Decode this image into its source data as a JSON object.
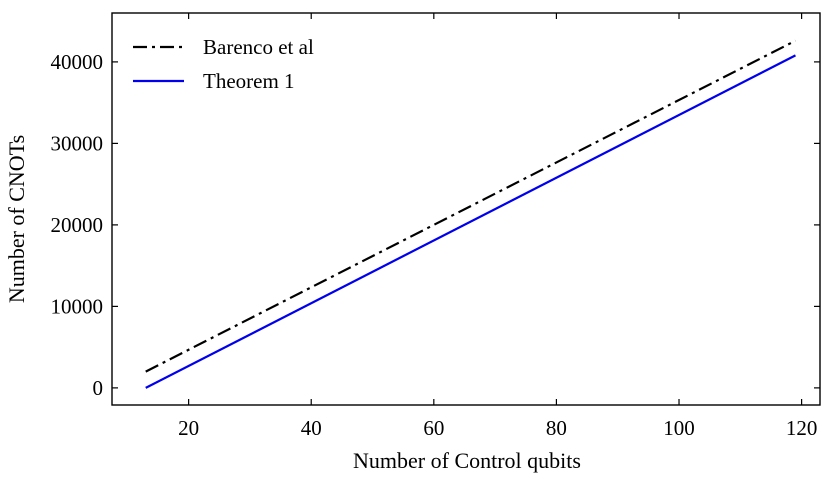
{
  "chart_data": {
    "type": "line",
    "title": "",
    "xlabel": "Number of Control qubits",
    "ylabel": "Number of CNOTs",
    "xlim": [
      7.5,
      123
    ],
    "ylim": [
      -2100,
      46000
    ],
    "xticks": [
      20,
      40,
      60,
      80,
      100,
      120
    ],
    "yticks": [
      0,
      10000,
      20000,
      30000,
      40000
    ],
    "xtick_labels": [
      "20",
      "40",
      "60",
      "80",
      "100",
      "120"
    ],
    "ytick_labels": [
      "0",
      "10000",
      "20000",
      "30000",
      "40000"
    ],
    "grid": false,
    "legend_position": "top-left",
    "series": [
      {
        "name": "Barenco et al",
        "color": "#000000",
        "style": "dashdot",
        "x": [
          13,
          119
        ],
        "y": [
          2000,
          42600
        ]
      },
      {
        "name": "Theorem 1",
        "color": "#0000ee",
        "style": "solid",
        "x": [
          13,
          119
        ],
        "y": [
          0,
          40800
        ]
      }
    ]
  }
}
